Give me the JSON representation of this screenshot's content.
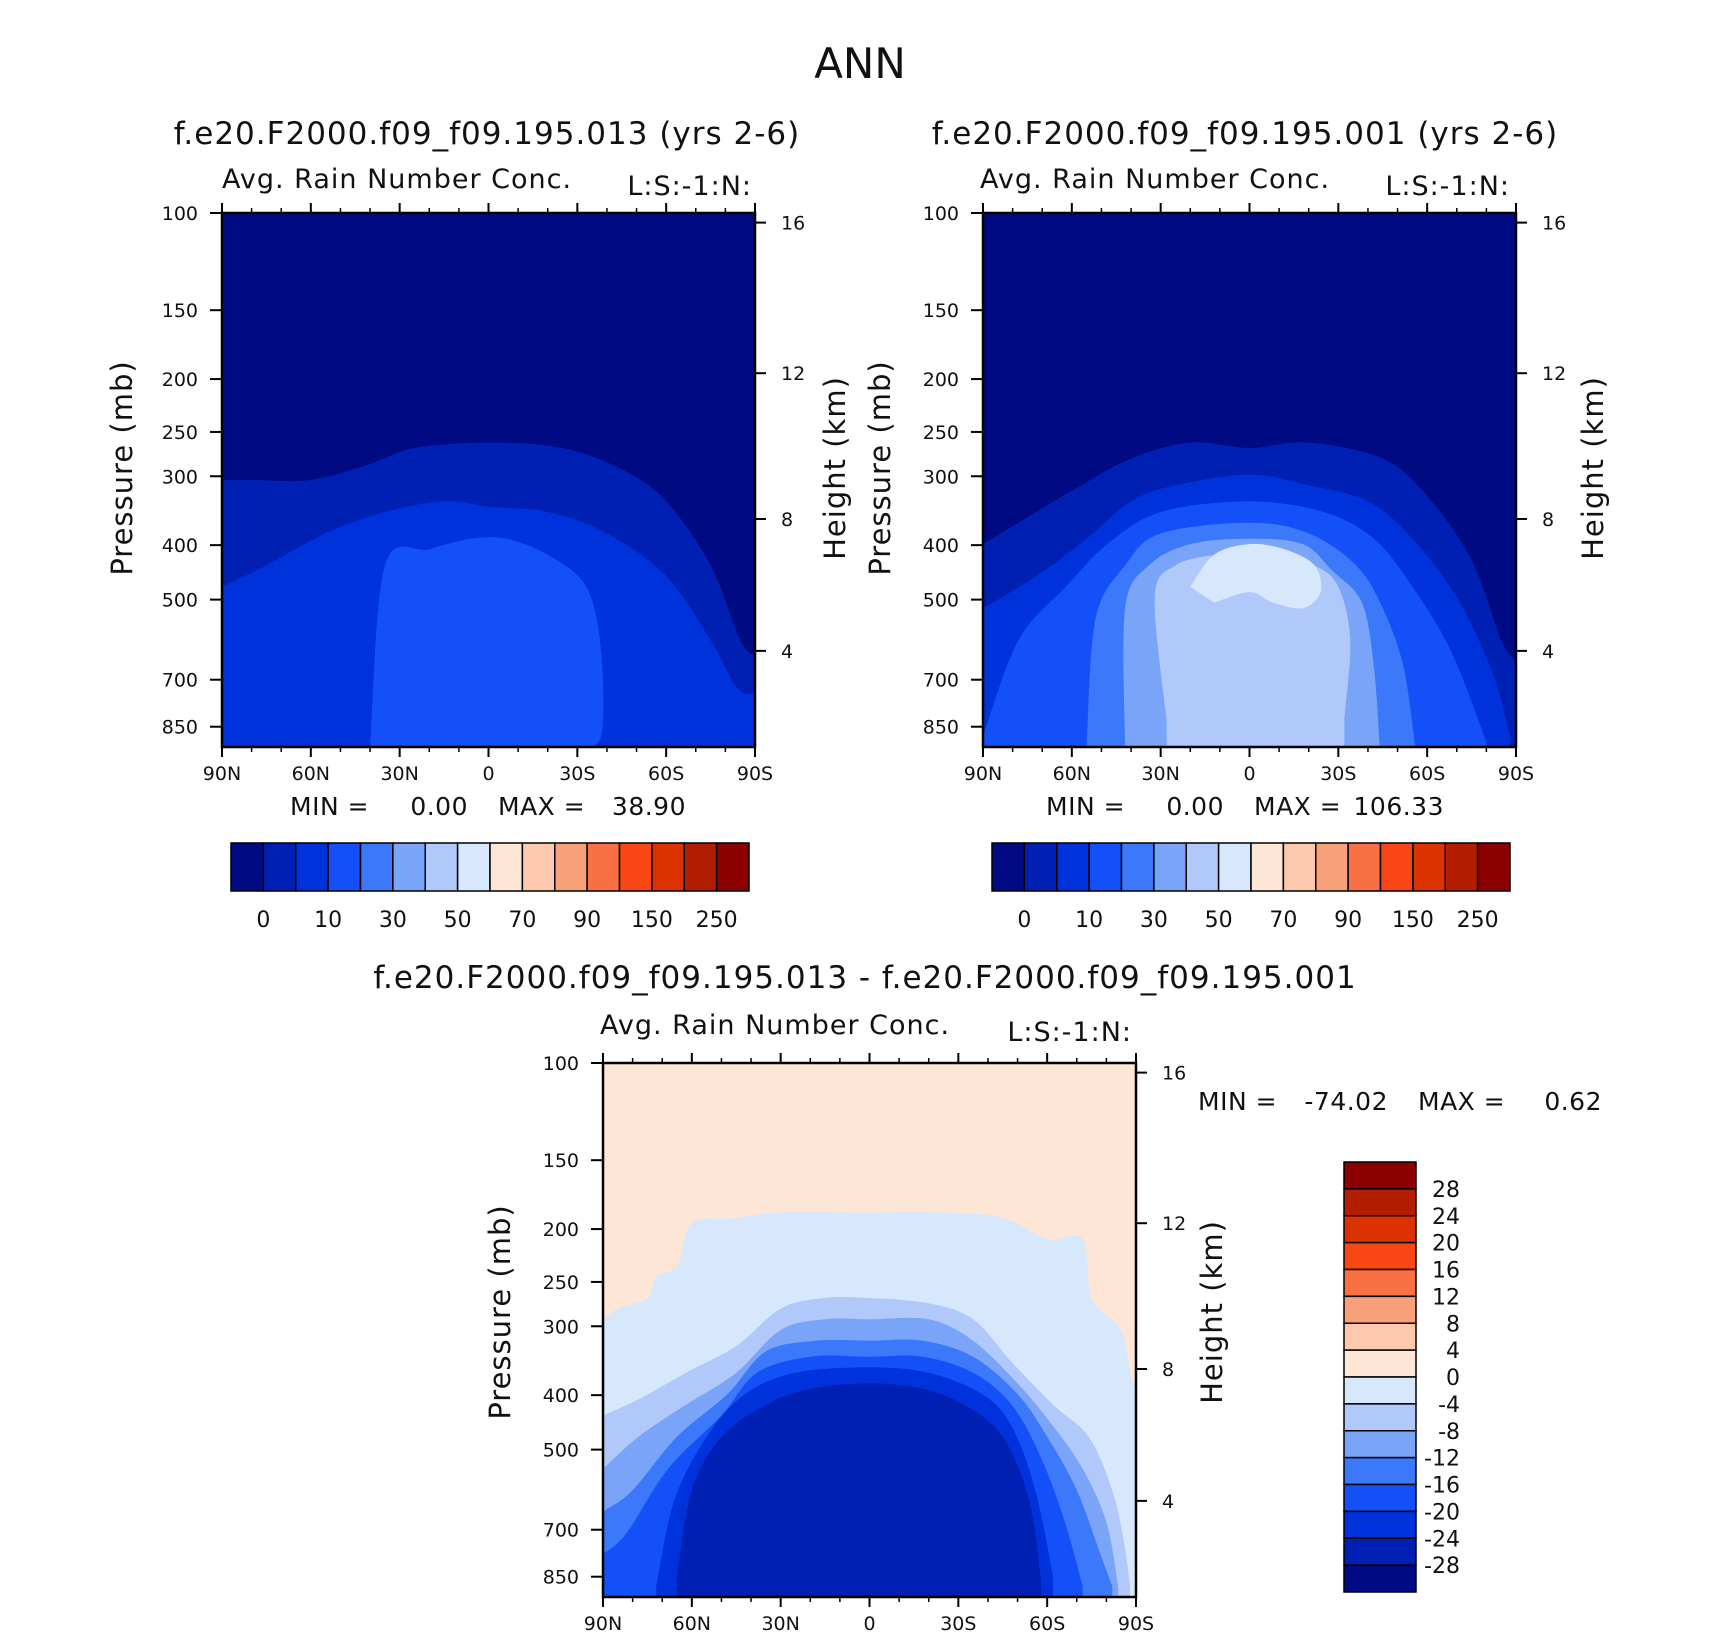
{
  "chart_data": {
    "type": "contour",
    "title": "ANN",
    "units_label": "L:S:-1:N:",
    "colors": {
      "model": [
        "#000a82",
        "#0020b4",
        "#0032dc",
        "#1450f8",
        "#3c78fa",
        "#7aa4f8",
        "#b0c8fa",
        "#d8e8fc",
        "#fde6d6",
        "#fcc8ae",
        "#f8a07a",
        "#f87044",
        "#f84614",
        "#dc3200",
        "#b41e00",
        "#8c0000"
      ],
      "diff": [
        "#000a82",
        "#0020b4",
        "#0032dc",
        "#1450f8",
        "#3c78fa",
        "#7aa4f8",
        "#b0c8fa",
        "#d8e8fc",
        "#fde6d6",
        "#fcc8ae",
        "#f8a07a",
        "#f87044",
        "#f84614",
        "#dc3200",
        "#b41e00",
        "#8c0000"
      ]
    },
    "panels": [
      {
        "id": "model1",
        "case_title": "f.e20.F2000.f09_f09.195.013 (yrs 2-6)",
        "var_title": "Avg. Rain Number Conc.",
        "units": "L:S:-1:N:",
        "ylabel_left": "Pressure (mb)",
        "ylabel_right": "Height (km)",
        "x_ticks": [
          "90N",
          "60N",
          "30N",
          "0",
          "30S",
          "60S",
          "90S"
        ],
        "y_ticks": [
          "100",
          "150",
          "200",
          "250",
          "300",
          "400",
          "500",
          "700",
          "850"
        ],
        "height_ticks": [
          "16",
          "12",
          "8",
          "4"
        ],
        "min_label": "MIN =",
        "min_value": "0.00",
        "max_label": "MAX =",
        "max_value": "38.90",
        "colorbar_labels": [
          "0",
          "10",
          "30",
          "50",
          "70",
          "90",
          "150",
          "250"
        ]
      },
      {
        "id": "model2",
        "case_title": "f.e20.F2000.f09_f09.195.001 (yrs 2-6)",
        "var_title": "Avg. Rain Number Conc.",
        "units": "L:S:-1:N:",
        "ylabel_left": "Pressure (mb)",
        "ylabel_right": "Height (km)",
        "x_ticks": [
          "90N",
          "60N",
          "30N",
          "0",
          "30S",
          "60S",
          "90S"
        ],
        "y_ticks": [
          "100",
          "150",
          "200",
          "250",
          "300",
          "400",
          "500",
          "700",
          "850"
        ],
        "height_ticks": [
          "16",
          "12",
          "8",
          "4"
        ],
        "min_label": "MIN =",
        "min_value": "0.00",
        "max_label": "MAX =",
        "max_value": "106.33",
        "colorbar_labels": [
          "0",
          "10",
          "30",
          "50",
          "70",
          "90",
          "150",
          "250"
        ]
      },
      {
        "id": "diff",
        "case_title": "f.e20.F2000.f09_f09.195.013 - f.e20.F2000.f09_f09.195.001",
        "var_title": "Avg. Rain Number Conc.",
        "units": "L:S:-1:N:",
        "ylabel_left": "Pressure (mb)",
        "ylabel_right": "Height (km)",
        "x_ticks": [
          "90N",
          "60N",
          "30N",
          "0",
          "30S",
          "60S",
          "90S"
        ],
        "y_ticks": [
          "100",
          "150",
          "200",
          "250",
          "300",
          "400",
          "500",
          "700",
          "850"
        ],
        "height_ticks": [
          "16",
          "12",
          "8",
          "4"
        ],
        "min_label": "MIN =",
        "min_value": "-74.02",
        "max_label": "MAX =",
        "max_value": "0.62",
        "colorbar_labels": [
          "28",
          "24",
          "20",
          "16",
          "12",
          "8",
          "4",
          "0",
          "-4",
          "-8",
          "-12",
          "-16",
          "-20",
          "-24",
          "-28"
        ]
      }
    ],
    "contours": {
      "model1": [
        {
          "level": 1,
          "top": [
            [
              -90,
              50
            ],
            [
              -80,
              50
            ],
            [
              -60,
              50
            ],
            [
              -40,
              47
            ],
            [
              -25,
              44
            ],
            [
              0,
              43
            ],
            [
              25,
              44
            ],
            [
              45,
              48
            ],
            [
              60,
              54
            ],
            [
              75,
              66
            ],
            [
              85,
              80
            ],
            [
              90,
              83
            ]
          ]
        },
        {
          "level": 2,
          "top": [
            [
              -90,
              70
            ],
            [
              -75,
              66
            ],
            [
              -55,
              60
            ],
            [
              -35,
              56
            ],
            [
              -15,
              54
            ],
            [
              0,
              55
            ],
            [
              20,
              56
            ],
            [
              40,
              60
            ],
            [
              60,
              68
            ],
            [
              75,
              80
            ],
            [
              84,
              89
            ],
            [
              90,
              90
            ]
          ]
        },
        {
          "level": 3,
          "top": [
            [
              -40,
              100
            ],
            [
              -35,
              66
            ],
            [
              -20,
              63
            ],
            [
              -6,
              61
            ],
            [
              6,
              61
            ],
            [
              20,
              64
            ],
            [
              33,
              70
            ],
            [
              38,
              82
            ],
            [
              38,
              98
            ],
            [
              30,
              100
            ]
          ]
        }
      ],
      "model2": [
        {
          "level": 1,
          "top": [
            [
              -90,
              62
            ],
            [
              -78,
              58
            ],
            [
              -60,
              52
            ],
            [
              -40,
              46
            ],
            [
              -20,
              43
            ],
            [
              0,
              44
            ],
            [
              20,
              43
            ],
            [
              45,
              46
            ],
            [
              60,
              53
            ],
            [
              75,
              65
            ],
            [
              85,
              80
            ],
            [
              90,
              84
            ]
          ]
        },
        {
          "level": 2,
          "top": [
            [
              -90,
              74
            ],
            [
              -72,
              68
            ],
            [
              -55,
              61
            ],
            [
              -40,
              54
            ],
            [
              -25,
              51
            ],
            [
              0,
              49
            ],
            [
              20,
              51
            ],
            [
              40,
              54
            ],
            [
              55,
              61
            ],
            [
              70,
              72
            ],
            [
              82,
              86
            ],
            [
              88,
              98
            ]
          ]
        },
        {
          "level": 3,
          "top": [
            [
              -90,
              98
            ],
            [
              -78,
              80
            ],
            [
              -62,
              70
            ],
            [
              -48,
              62
            ],
            [
              -30,
              56
            ],
            [
              0,
              54
            ],
            [
              25,
              56
            ],
            [
              42,
              61
            ],
            [
              55,
              70
            ],
            [
              68,
              82
            ],
            [
              80,
              99
            ]
          ]
        },
        {
          "level": 4,
          "top": [
            [
              -55,
              100
            ],
            [
              -52,
              76
            ],
            [
              -42,
              66
            ],
            [
              -30,
              60
            ],
            [
              0,
              58
            ],
            [
              20,
              60
            ],
            [
              36,
              66
            ],
            [
              45,
              74
            ],
            [
              52,
              85
            ],
            [
              56,
              100
            ]
          ]
        },
        {
          "level": 5,
          "top": [
            [
              -42,
              100
            ],
            [
              -42,
              74
            ],
            [
              -34,
              66
            ],
            [
              -20,
              62
            ],
            [
              0,
              61
            ],
            [
              18,
              62
            ],
            [
              28,
              67
            ],
            [
              38,
              73
            ],
            [
              42,
              85
            ],
            [
              44,
              100
            ]
          ]
        },
        {
          "level": 6,
          "top": [
            [
              -28,
              95
            ],
            [
              -32,
              72
            ],
            [
              -25,
              66
            ],
            [
              -10,
              64
            ],
            [
              0,
              65
            ],
            [
              10,
              64
            ],
            [
              22,
              66
            ],
            [
              30,
              70
            ],
            [
              34,
              80
            ],
            [
              32,
              95
            ]
          ]
        },
        {
          "level": 7,
          "top": [
            [
              -20,
              70
            ],
            [
              -12,
              64
            ],
            [
              0,
              62
            ],
            [
              12,
              63
            ],
            [
              22,
              66
            ],
            [
              24,
              71
            ],
            [
              18,
              74
            ],
            [
              8,
              73
            ],
            [
              0,
              71
            ],
            [
              -12,
              73
            ]
          ]
        }
      ],
      "diff": [
        {
          "level": 7,
          "top": [
            [
              -90,
              48
            ],
            [
              -85,
              46
            ],
            [
              -75,
              44
            ],
            [
              -72,
              40
            ],
            [
              -65,
              38
            ],
            [
              -60,
              30
            ],
            [
              -45,
              29
            ],
            [
              -30,
              28
            ],
            [
              0,
              28
            ],
            [
              25,
              28
            ],
            [
              45,
              29
            ],
            [
              60,
              33
            ],
            [
              72,
              33
            ],
            [
              75,
              44
            ],
            [
              85,
              50
            ],
            [
              88,
              58
            ],
            [
              90,
              60
            ]
          ]
        },
        {
          "level": 6,
          "top": [
            [
              -90,
              66
            ],
            [
              -78,
              63
            ],
            [
              -62,
              58
            ],
            [
              -45,
              53
            ],
            [
              -30,
              46
            ],
            [
              -15,
              44
            ],
            [
              0,
              44
            ],
            [
              20,
              45
            ],
            [
              35,
              48
            ],
            [
              48,
              56
            ],
            [
              62,
              64
            ],
            [
              74,
              70
            ],
            [
              82,
              80
            ],
            [
              86,
              90
            ],
            [
              88,
              98
            ]
          ]
        },
        {
          "level": 5,
          "top": [
            [
              -90,
              76
            ],
            [
              -78,
              70
            ],
            [
              -62,
              64
            ],
            [
              -45,
              58
            ],
            [
              -30,
              50
            ],
            [
              -15,
              48
            ],
            [
              0,
              48
            ],
            [
              20,
              48
            ],
            [
              35,
              52
            ],
            [
              50,
              60
            ],
            [
              62,
              68
            ],
            [
              72,
              76
            ],
            [
              80,
              86
            ],
            [
              84,
              98
            ]
          ]
        },
        {
          "level": 4,
          "top": [
            [
              -90,
              84
            ],
            [
              -80,
              80
            ],
            [
              -65,
              70
            ],
            [
              -48,
              62
            ],
            [
              -35,
              54
            ],
            [
              -18,
              52
            ],
            [
              0,
              52
            ],
            [
              18,
              52
            ],
            [
              35,
              55
            ],
            [
              50,
              62
            ],
            [
              60,
              70
            ],
            [
              70,
              80
            ],
            [
              78,
              92
            ],
            [
              82,
              98
            ]
          ]
        },
        {
          "level": 3,
          "top": [
            [
              -90,
              92
            ],
            [
              -82,
              88
            ],
            [
              -68,
              76
            ],
            [
              -50,
              66
            ],
            [
              -38,
              58
            ],
            [
              -20,
              55
            ],
            [
              0,
              55
            ],
            [
              18,
              55
            ],
            [
              35,
              58
            ],
            [
              48,
              64
            ],
            [
              58,
              74
            ],
            [
              66,
              86
            ],
            [
              72,
              98
            ]
          ]
        },
        {
          "level": 2,
          "top": [
            [
              -72,
              98
            ],
            [
              -66,
              82
            ],
            [
              -55,
              70
            ],
            [
              -42,
              62
            ],
            [
              -25,
              58
            ],
            [
              0,
              57
            ],
            [
              20,
              58
            ],
            [
              38,
              62
            ],
            [
              48,
              68
            ],
            [
              56,
              80
            ],
            [
              62,
              96
            ]
          ]
        },
        {
          "level": 1,
          "top": [
            [
              -65,
              96
            ],
            [
              -60,
              80
            ],
            [
              -50,
              70
            ],
            [
              -35,
              64
            ],
            [
              -20,
              61
            ],
            [
              0,
              60
            ],
            [
              18,
              61
            ],
            [
              32,
              64
            ],
            [
              45,
              70
            ],
            [
              54,
              82
            ],
            [
              58,
              97
            ]
          ]
        }
      ]
    }
  }
}
